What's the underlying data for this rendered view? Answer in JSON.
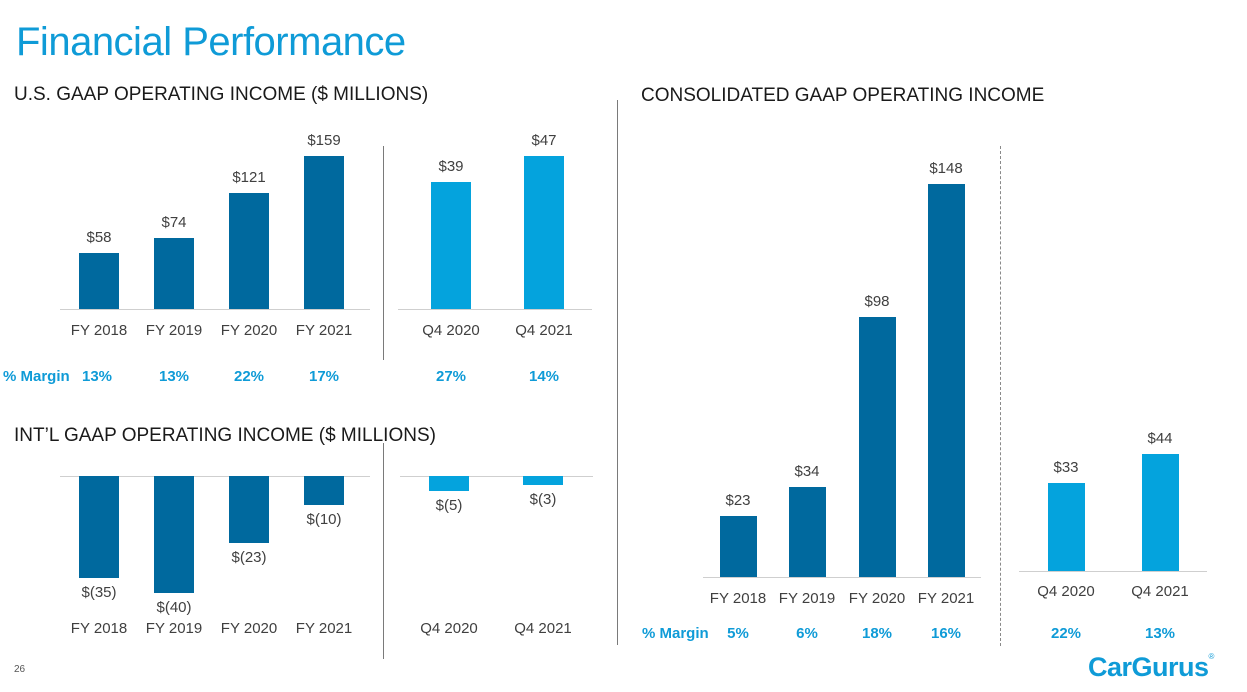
{
  "page": {
    "title": "Financial Performance",
    "page_number": "26",
    "logo_text": "CarGurus",
    "logo_mark": "®"
  },
  "colors": {
    "annual": "#00699e",
    "quarter": "#04a3dd",
    "accent": "#0f9bd7"
  },
  "margin_label": "% Margin",
  "chart_data": [
    {
      "id": "us",
      "type": "bar",
      "title": "U.S. GAAP OPERATING INCOME ($ MILLIONS)",
      "unit": "$ millions",
      "ylim": [
        0,
        47
      ],
      "groups": [
        {
          "name": "annual",
          "color": "#00699e",
          "categories": [
            "FY 2018",
            "FY 2019",
            "FY 2020",
            "FY 2021"
          ],
          "values": [
            58,
            74,
            121,
            159
          ],
          "labels": [
            "$58",
            "$74",
            "$121",
            "$159"
          ],
          "margins": [
            "13%",
            "13%",
            "22%",
            "17%"
          ]
        },
        {
          "name": "quarterly",
          "color": "#04a3dd",
          "categories": [
            "Q4 2020",
            "Q4 2021"
          ],
          "values": [
            39,
            47
          ],
          "labels": [
            "$39",
            "$47"
          ],
          "margins": [
            "27%",
            "14%"
          ]
        }
      ]
    },
    {
      "id": "intl",
      "type": "bar",
      "title": "INT’L GAAP OPERATING INCOME ($ MILLIONS)",
      "unit": "$ millions",
      "groups": [
        {
          "name": "annual",
          "color": "#00699e",
          "categories": [
            "FY 2018",
            "FY 2019",
            "FY 2020",
            "FY 2021"
          ],
          "values": [
            -35,
            -40,
            -23,
            -10
          ],
          "labels": [
            "$(35)",
            "$(40)",
            "$(23)",
            "$(10)"
          ]
        },
        {
          "name": "quarterly",
          "color": "#04a3dd",
          "categories": [
            "Q4 2020",
            "Q4 2021"
          ],
          "values": [
            -5,
            -3
          ],
          "labels": [
            "$(5)",
            "$(3)"
          ]
        }
      ]
    },
    {
      "id": "consolidated",
      "type": "bar",
      "title": "CONSOLIDATED GAAP OPERATING INCOME",
      "unit": "$ millions",
      "groups": [
        {
          "name": "annual",
          "color": "#00699e",
          "categories": [
            "FY 2018",
            "FY 2019",
            "FY 2020",
            "FY 2021"
          ],
          "values": [
            23,
            34,
            98,
            148
          ],
          "labels": [
            "$23",
            "$34",
            "$98",
            "$148"
          ],
          "margins": [
            "5%",
            "6%",
            "18%",
            "16%"
          ]
        },
        {
          "name": "quarterly",
          "color": "#04a3dd",
          "categories": [
            "Q4 2020",
            "Q4 2021"
          ],
          "values": [
            33,
            44
          ],
          "labels": [
            "$33",
            "$44"
          ],
          "margins": [
            "22%",
            "13%"
          ]
        }
      ]
    }
  ]
}
